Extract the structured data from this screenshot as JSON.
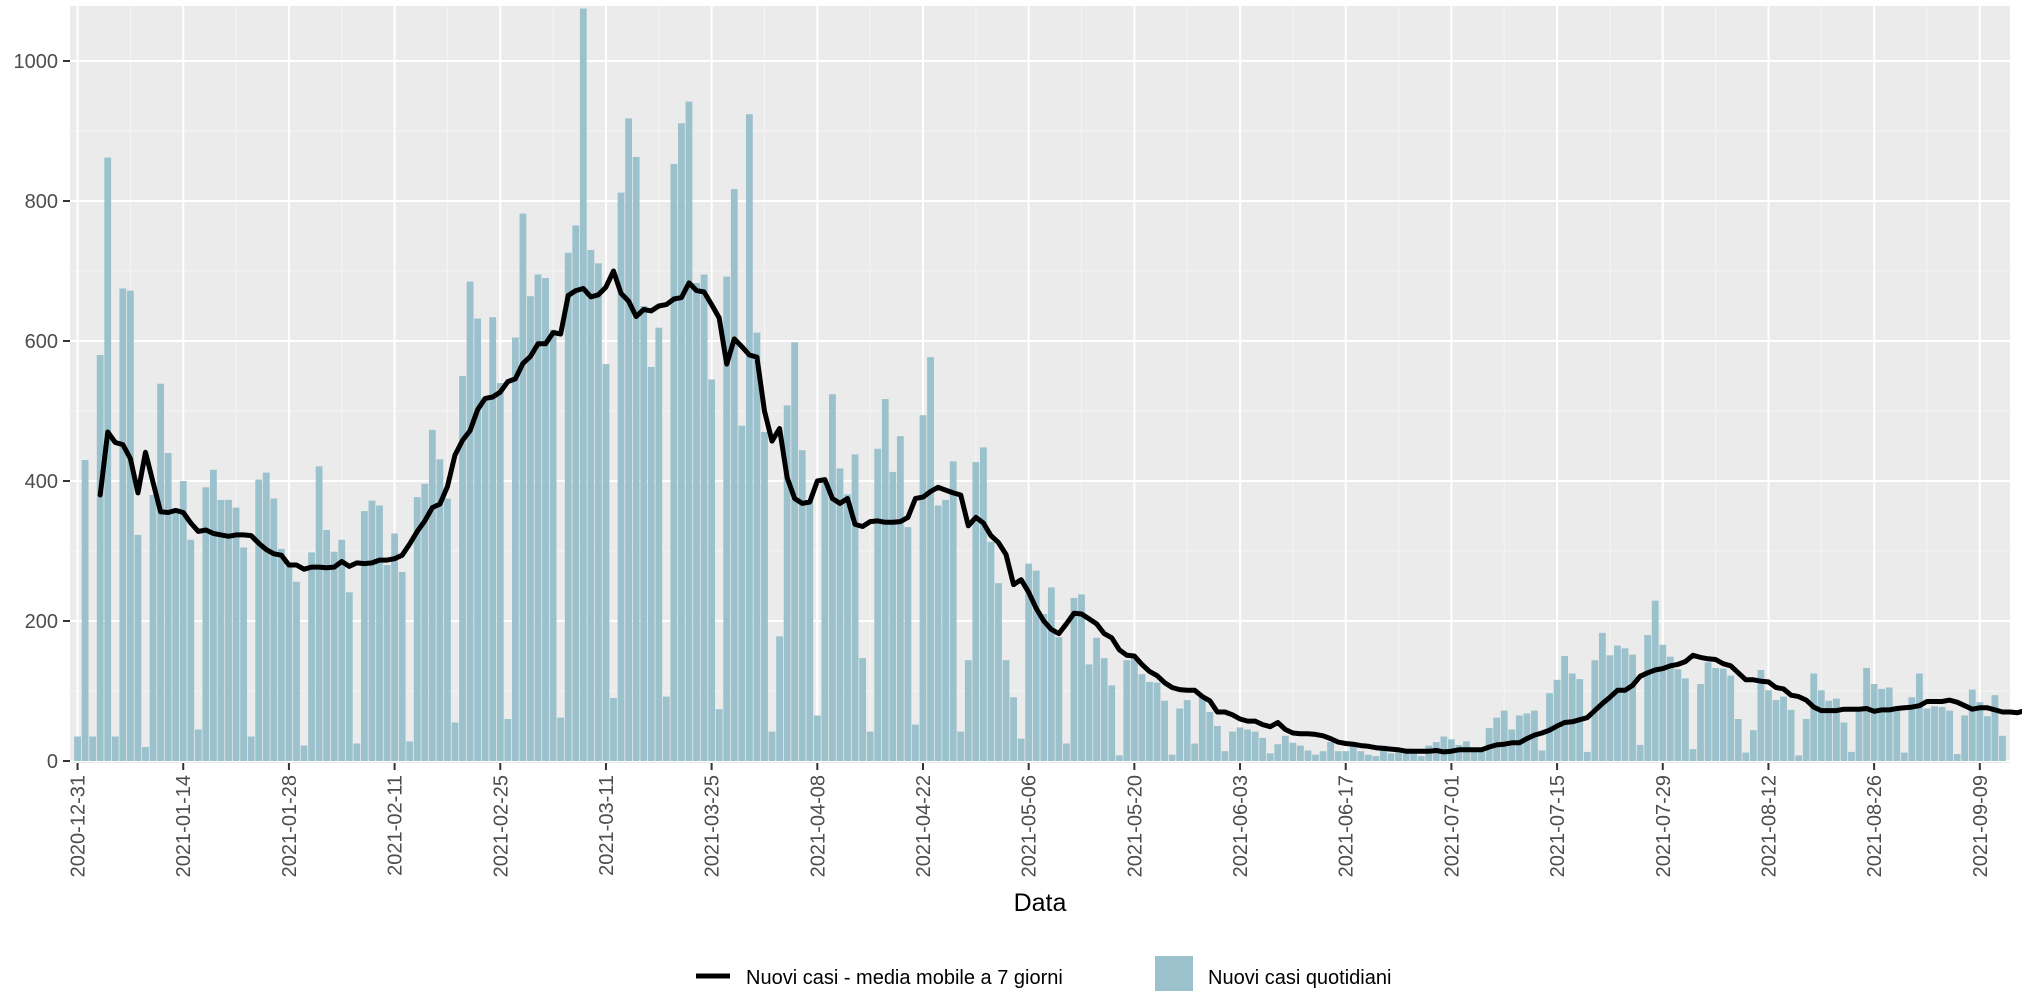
{
  "chart_data": {
    "type": "bar",
    "xlabel": "Data",
    "ylabel": "",
    "ylim": [
      0,
      1075
    ],
    "grid": true,
    "legend_position": "bottom",
    "y_ticks": [
      "0",
      "200",
      "400",
      "600",
      "800",
      "1000"
    ],
    "x_tick_labels": [
      "2020-12-31",
      "2021-01-14",
      "2021-01-28",
      "2021-02-11",
      "2021-02-25",
      "2021-03-11",
      "2021-03-25",
      "2021-04-08",
      "2021-04-22",
      "2021-05-06",
      "2021-05-20",
      "2021-06-03",
      "2021-06-17",
      "2021-07-01",
      "2021-07-15",
      "2021-07-29",
      "2021-08-12",
      "2021-08-26",
      "2021-09-09"
    ],
    "start_date": "2020-12-31",
    "series": [
      {
        "name": "Nuovi casi quotidiani",
        "mark": "bar",
        "color": "#9bc1cd",
        "values": [
          35,
          430,
          35,
          580,
          862,
          35,
          675,
          672,
          323,
          20,
          380,
          539,
          440,
          355,
          400,
          316,
          45,
          391,
          416,
          373,
          373,
          362,
          305,
          35,
          402,
          412,
          375,
          303,
          278,
          256,
          22,
          298,
          421,
          330,
          299,
          316,
          241,
          25,
          357,
          372,
          365,
          280,
          325,
          270,
          28,
          377,
          396,
          473,
          431,
          375,
          55,
          550,
          685,
          632,
          519,
          634,
          540,
          60,
          605,
          782,
          664,
          695,
          690,
          616,
          62,
          726,
          765,
          1075,
          730,
          711,
          567,
          90,
          812,
          918,
          863,
          650,
          563,
          619,
          92,
          853,
          911,
          942,
          683,
          695,
          545,
          74,
          692,
          817,
          479,
          924,
          612,
          470,
          42,
          178,
          508,
          598,
          444,
          372,
          65,
          400,
          524,
          418,
          381,
          438,
          147,
          42,
          446,
          517,
          413,
          464,
          334,
          52,
          494,
          577,
          365,
          373,
          428,
          42,
          144,
          427,
          448,
          313,
          254,
          144,
          91,
          32,
          282,
          272,
          210,
          248,
          177,
          25,
          233,
          238,
          138,
          176,
          147,
          108,
          8,
          144,
          151,
          124,
          113,
          112,
          86,
          9,
          75,
          87,
          25,
          91,
          70,
          50,
          14,
          42,
          48,
          45,
          42,
          33,
          11,
          24,
          36,
          26,
          22,
          15,
          9,
          14,
          27,
          14,
          14,
          24,
          14,
          9,
          7,
          22,
          11,
          18,
          18,
          13,
          7,
          22,
          27,
          35,
          31,
          23,
          28,
          19,
          13,
          47,
          62,
          72,
          45,
          65,
          68,
          72,
          15,
          97,
          116,
          150,
          125,
          117,
          13,
          144,
          183,
          151,
          165,
          161,
          152,
          23,
          180,
          229,
          166,
          149,
          131,
          118,
          17,
          110,
          141,
          133,
          132,
          122,
          60,
          12,
          44,
          130,
          101,
          87,
          92,
          73,
          8,
          60,
          125,
          101,
          86,
          89,
          55,
          13,
          74,
          133,
          110,
          103,
          105,
          77,
          12,
          91,
          125,
          75,
          78,
          77,
          72,
          10,
          65,
          102,
          84,
          64,
          94,
          36
        ]
      },
      {
        "name": "Nuovi casi - media mobile a 7 giorni",
        "mark": "line",
        "color": "#000000",
        "start_index": 3,
        "values": [
          380,
          470,
          455,
          452,
          432,
          383,
          441,
          398,
          356,
          355,
          358,
          355,
          340,
          328,
          330,
          325,
          323,
          321,
          323,
          323,
          322,
          311,
          302,
          296,
          294,
          280,
          280,
          274,
          277,
          277,
          276,
          277,
          285,
          278,
          283,
          282,
          283,
          287,
          287,
          289,
          294,
          310,
          328,
          343,
          362,
          367,
          392,
          437,
          458,
          472,
          502,
          518,
          520,
          527,
          542,
          546,
          568,
          578,
          596,
          596,
          612,
          610,
          665,
          672,
          675,
          663,
          666,
          677,
          700,
          668,
          657,
          635,
          645,
          643,
          650,
          652,
          660,
          662,
          683,
          672,
          670,
          652,
          633,
          567,
          603,
          592,
          580,
          577,
          500,
          457,
          475,
          405,
          375,
          368,
          370,
          400,
          402,
          375,
          368,
          375,
          338,
          335,
          342,
          343,
          341,
          341,
          342,
          348,
          375,
          377,
          385,
          391,
          387,
          383,
          380,
          336,
          348,
          340,
          322,
          312,
          295,
          252,
          259,
          241,
          218,
          200,
          188,
          182,
          196,
          211,
          210,
          203,
          196,
          182,
          176,
          159,
          151,
          150,
          138,
          128,
          122,
          112,
          105,
          102,
          101,
          101,
          92,
          86,
          70,
          70,
          66,
          60,
          57,
          57,
          52,
          49,
          55,
          45,
          40,
          39,
          39,
          38,
          36,
          32,
          27,
          25,
          24,
          22,
          21,
          19,
          18,
          17,
          16,
          14,
          14,
          14,
          14,
          15,
          13,
          14,
          16,
          16,
          16,
          16,
          20,
          23,
          24,
          26,
          26,
          32,
          37,
          40,
          44,
          50,
          55,
          56,
          59,
          62,
          72,
          82,
          91,
          101,
          101,
          108,
          121,
          126,
          130,
          132,
          136,
          138,
          142,
          151,
          148,
          146,
          145,
          139,
          136,
          126,
          116,
          116,
          114,
          113,
          105,
          103,
          94,
          92,
          87,
          77,
          72,
          72,
          72,
          74,
          74,
          74,
          75,
          71,
          73,
          73,
          75,
          76,
          77,
          79,
          85,
          85,
          85,
          87,
          84,
          79,
          74,
          76,
          76,
          73,
          70,
          70,
          69,
          72,
          66,
          65,
          63,
          53
        ]
      }
    ]
  }
}
